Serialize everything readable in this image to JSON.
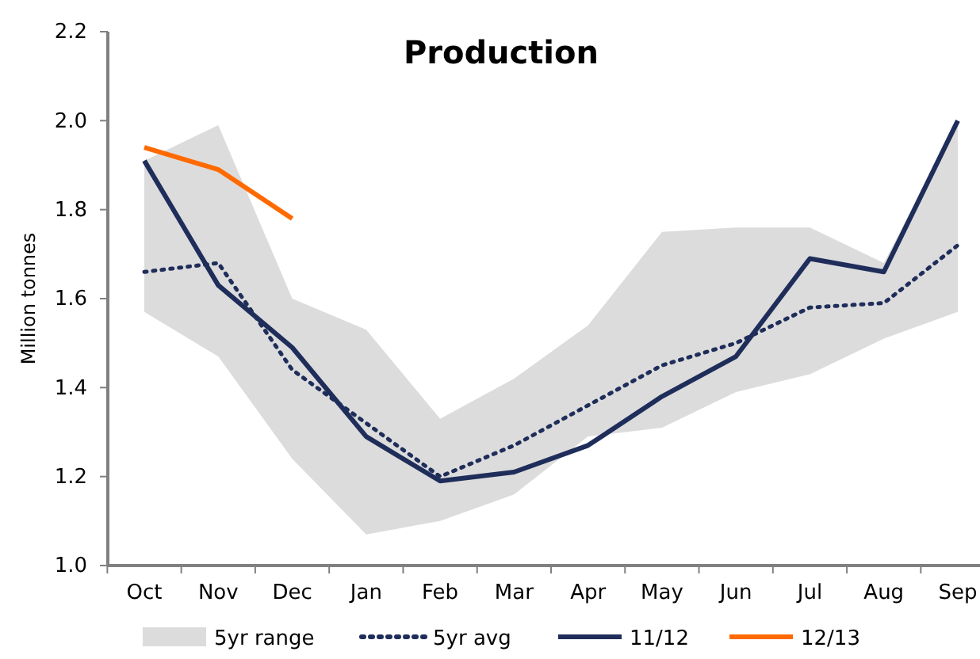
{
  "chart_data": {
    "type": "line",
    "title": "Production",
    "ylabel": "Million tonnes",
    "categories": [
      "Oct",
      "Nov",
      "Dec",
      "Jan",
      "Feb",
      "Mar",
      "Apr",
      "May",
      "Jun",
      "Jul",
      "Aug",
      "Sep"
    ],
    "series": [
      {
        "name": "5yr range",
        "type": "area",
        "color": "#dcdcdc",
        "lower": [
          1.57,
          1.47,
          1.24,
          1.07,
          1.1,
          1.16,
          1.29,
          1.31,
          1.39,
          1.43,
          1.51,
          1.57
        ],
        "upper": [
          1.91,
          1.99,
          1.6,
          1.53,
          1.33,
          1.42,
          1.54,
          1.75,
          1.76,
          1.76,
          1.68,
          2.0
        ],
        "values": [
          null,
          null,
          null,
          null,
          null,
          null,
          null,
          null,
          null,
          null,
          null,
          null
        ]
      },
      {
        "name": "5yr avg",
        "color": "#1f2d5a",
        "line_style": "dotted",
        "values": [
          1.66,
          1.68,
          1.44,
          1.32,
          1.2,
          1.27,
          1.36,
          1.45,
          1.5,
          1.58,
          1.59,
          1.72
        ]
      },
      {
        "name": "11/12",
        "color": "#1f2d5a",
        "line_style": "solid",
        "values": [
          1.91,
          1.63,
          1.49,
          1.29,
          1.19,
          1.21,
          1.27,
          1.38,
          1.47,
          1.69,
          1.66,
          2.0
        ]
      },
      {
        "name": "12/13",
        "color": "#ff6a00",
        "line_style": "solid",
        "values": [
          1.94,
          1.89,
          1.78,
          null,
          null,
          null,
          null,
          null,
          null,
          null,
          null,
          null
        ]
      }
    ],
    "ylim": [
      1.0,
      2.2
    ],
    "yticks": [
      {
        "value": 1.0,
        "label": "1.0"
      },
      {
        "value": 1.2,
        "label": "1.2"
      },
      {
        "value": 1.4,
        "label": "1.4"
      },
      {
        "value": 1.6,
        "label": "1.6"
      },
      {
        "value": 1.8,
        "label": "1.8"
      },
      {
        "value": 2.0,
        "label": "2.0"
      },
      {
        "value": 2.2,
        "label": "2.2"
      }
    ],
    "grid": false,
    "legend": "bottom"
  }
}
